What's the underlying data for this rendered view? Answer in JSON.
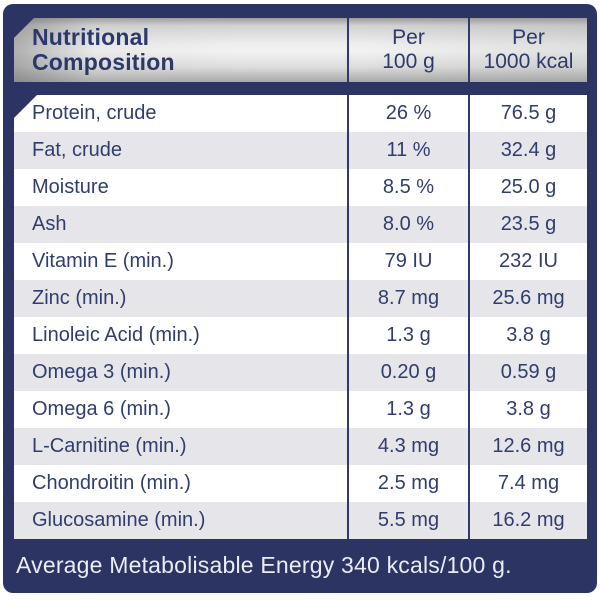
{
  "table": {
    "header": {
      "title_line1": "Nutritional",
      "title_line2": "Composition",
      "col_per_100g_line1": "Per",
      "col_per_100g_line2": "100 g",
      "col_per_1000kcal_line1": "Per",
      "col_per_1000kcal_line2": "1000 kcal"
    },
    "rows": [
      {
        "label": "Protein, crude",
        "per_100g": "26 %",
        "per_1000kcal": "76.5 g"
      },
      {
        "label": "Fat, crude",
        "per_100g": "11 %",
        "per_1000kcal": "32.4 g"
      },
      {
        "label": "Moisture",
        "per_100g": "8.5 %",
        "per_1000kcal": "25.0 g"
      },
      {
        "label": "Ash",
        "per_100g": "8.0 %",
        "per_1000kcal": "23.5 g"
      },
      {
        "label": "Vitamin E (min.)",
        "per_100g": "79 IU",
        "per_1000kcal": "232 IU"
      },
      {
        "label": "Zinc (min.)",
        "per_100g": "8.7 mg",
        "per_1000kcal": "25.6 mg"
      },
      {
        "label": "Linoleic Acid (min.)",
        "per_100g": "1.3 g",
        "per_1000kcal": "3.8 g"
      },
      {
        "label": "Omega 3 (min.)",
        "per_100g": "0.20 g",
        "per_1000kcal": "0.59 g"
      },
      {
        "label": "Omega 6 (min.)",
        "per_100g": "1.3 g",
        "per_1000kcal": "3.8 g"
      },
      {
        "label": "L-Carnitine (min.)",
        "per_100g": "4.3 mg",
        "per_1000kcal": "12.6 mg"
      },
      {
        "label": "Chondroitin (min.)",
        "per_100g": "2.5 mg",
        "per_1000kcal": "7.4 mg"
      },
      {
        "label": "Glucosamine (min.)",
        "per_100g": "5.5 mg",
        "per_1000kcal": "16.2 mg"
      }
    ],
    "footer_note": "Average Metabolisable Energy 340 kcals/100 g."
  },
  "colors": {
    "frame_navy": "#2b3462",
    "text_navy": "#313d6c",
    "divider_navy": "#2e3a69",
    "row_alt_gray": "#e5e5ea",
    "row_white": "#ffffff",
    "footer_text": "#eaedf4",
    "header_metal_light": "#f2f2f2",
    "header_metal_dark": "#9c9c9c"
  }
}
